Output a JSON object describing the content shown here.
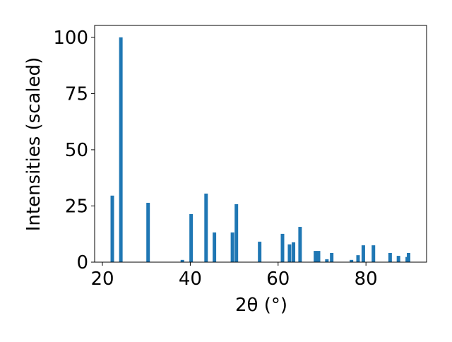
{
  "chart_data": {
    "type": "bar",
    "xlabel": "2θ (°)",
    "ylabel": "Intensities (scaled)",
    "color": "#1f77b4",
    "x": [
      22.25,
      24.2,
      30.4,
      38.2,
      40.2,
      43.6,
      45.5,
      49.6,
      50.5,
      55.8,
      61.0,
      62.6,
      63.5,
      65.0,
      68.5,
      69.2,
      71.1,
      72.2,
      76.7,
      78.2,
      79.4,
      81.7,
      85.5,
      87.4,
      89.4,
      89.7
    ],
    "values": [
      29.6,
      100,
      26.4,
      1,
      21.4,
      30.5,
      13.2,
      13.2,
      25.8,
      9.1,
      12.6,
      7.9,
      8.8,
      15.7,
      5.0,
      5.0,
      1.3,
      4.1,
      1.0,
      3.1,
      7.5,
      7.5,
      4.1,
      2.8,
      2.3,
      4.1
    ],
    "xlim": [
      18.23,
      93.8
    ],
    "ylim": [
      0,
      105.3
    ],
    "xticks": [
      20,
      40,
      60,
      80
    ],
    "yticks": [
      0,
      25,
      50,
      75,
      100
    ]
  }
}
